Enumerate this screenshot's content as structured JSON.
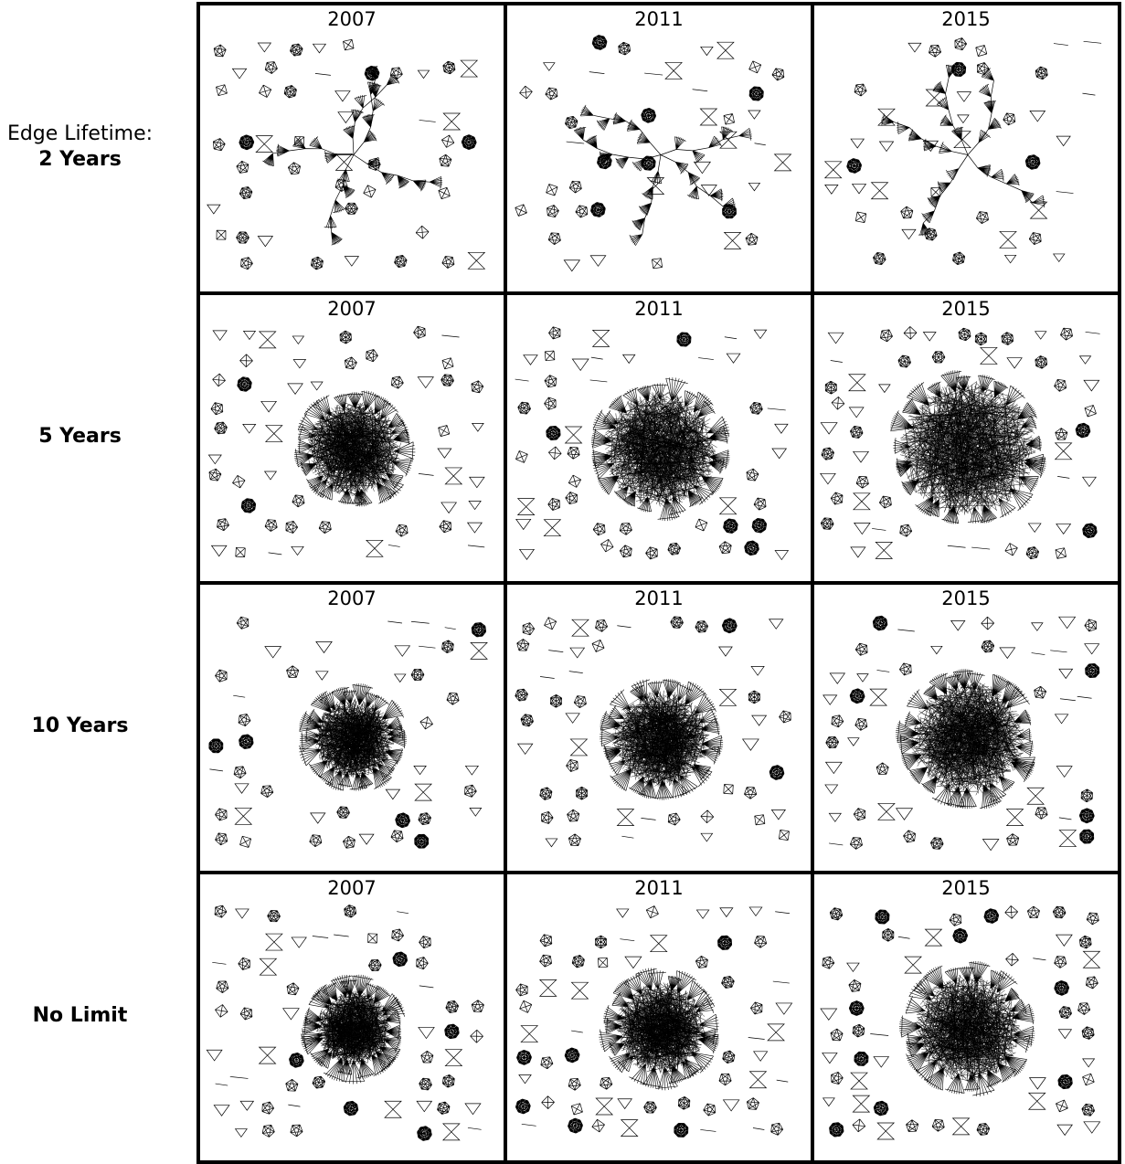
{
  "row_label_prefix": "Edge Lifetime:",
  "rows": [
    {
      "label": "2 Years",
      "core": "chains",
      "spread": 0
    },
    {
      "label": "5 Years",
      "core": "blob",
      "spread": 95
    },
    {
      "label": "10 Years",
      "core": "blob",
      "spread": 80
    },
    {
      "label": "No Limit",
      "core": "blob",
      "spread": 75
    }
  ],
  "columns": [
    "2007",
    "2011",
    "2015"
  ]
}
